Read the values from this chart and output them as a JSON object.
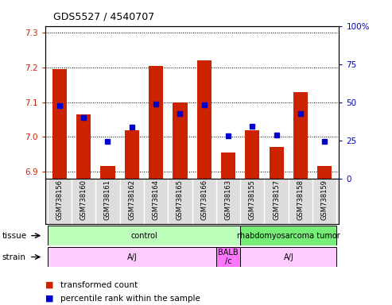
{
  "title": "GDS5527 / 4540707",
  "samples": [
    "GSM738156",
    "GSM738160",
    "GSM738161",
    "GSM738162",
    "GSM738164",
    "GSM738165",
    "GSM738166",
    "GSM738163",
    "GSM738155",
    "GSM738157",
    "GSM738158",
    "GSM738159"
  ],
  "red_values": [
    7.195,
    7.065,
    6.915,
    7.02,
    7.205,
    7.1,
    7.22,
    6.955,
    7.02,
    6.97,
    7.13,
    6.915
  ],
  "blue_values": [
    7.09,
    7.055,
    6.988,
    7.028,
    7.095,
    7.068,
    7.092,
    7.002,
    7.03,
    7.005,
    7.068,
    6.988
  ],
  "ylim_left": [
    6.88,
    7.32
  ],
  "ylim_right": [
    0,
    100
  ],
  "yticks_left": [
    6.9,
    7.0,
    7.1,
    7.2,
    7.3
  ],
  "yticks_right": [
    0,
    25,
    50,
    75,
    100
  ],
  "ytick_labels_right": [
    "0",
    "25",
    "50",
    "75",
    "100%"
  ],
  "bar_bottom": 6.88,
  "tissue_data": [
    {
      "text": "control",
      "start": 0,
      "end": 7,
      "color": "#bbffbb"
    },
    {
      "text": "rhabdomyosarcoma tumor",
      "start": 8,
      "end": 11,
      "color": "#77ee77"
    }
  ],
  "strain_data": [
    {
      "text": "A/J",
      "start": 0,
      "end": 6,
      "color": "#ffccff"
    },
    {
      "text": "BALB\n/c",
      "start": 7,
      "end": 7,
      "color": "#ff77ff"
    },
    {
      "text": "A/J",
      "start": 8,
      "end": 11,
      "color": "#ffccff"
    }
  ],
  "legend_red": "transformed count",
  "legend_blue": "percentile rank within the sample",
  "bar_color": "#cc2200",
  "blue_color": "#0000cc",
  "tick_color_left": "#cc2200",
  "tick_color_right": "#0000cc",
  "label_bg_color": "#dddddd",
  "n_samples": 12
}
